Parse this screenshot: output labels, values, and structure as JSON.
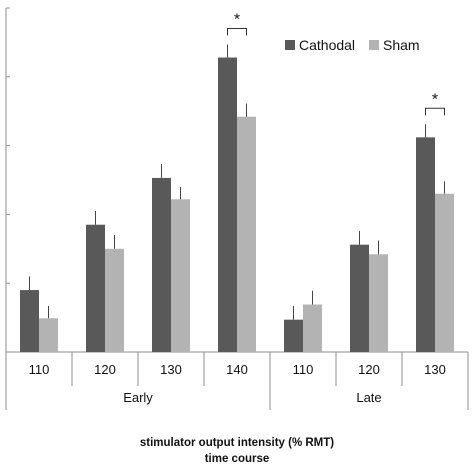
{
  "chart_data": {
    "type": "bar",
    "groups": [
      {
        "label": "Early",
        "categories": [
          "110",
          "120",
          "130",
          "140"
        ]
      },
      {
        "label": "Late",
        "categories": [
          "110",
          "120",
          "130"
        ]
      }
    ],
    "series": [
      {
        "name": "Cathodal",
        "color": "#595959",
        "values": [
          0.9,
          1.85,
          2.53,
          4.28,
          0.47,
          1.56,
          3.12
        ]
      },
      {
        "name": "Sham",
        "color": "#b3b3b3",
        "values": [
          0.49,
          1.5,
          2.22,
          3.42,
          0.69,
          1.42,
          2.3
        ]
      }
    ],
    "errors": {
      "Cathodal": [
        0.2,
        0.2,
        0.2,
        0.19,
        0.2,
        0.2,
        0.19
      ],
      "Sham": [
        0.18,
        0.2,
        0.18,
        0.19,
        0.2,
        0.2,
        0.18
      ]
    },
    "significance": [
      {
        "group": "Early",
        "category": "140",
        "label": "*"
      },
      {
        "group": "Late",
        "category": "130",
        "label": "*"
      }
    ],
    "ylim": [
      0,
      5
    ],
    "yticks": [
      0,
      1,
      2,
      3,
      4,
      5
    ],
    "ytick_labels_visible": false,
    "grid": false,
    "legend_position": "top-right",
    "xlabel": "stimulator output intensity (% RMT)",
    "xlabel2": "time course"
  }
}
